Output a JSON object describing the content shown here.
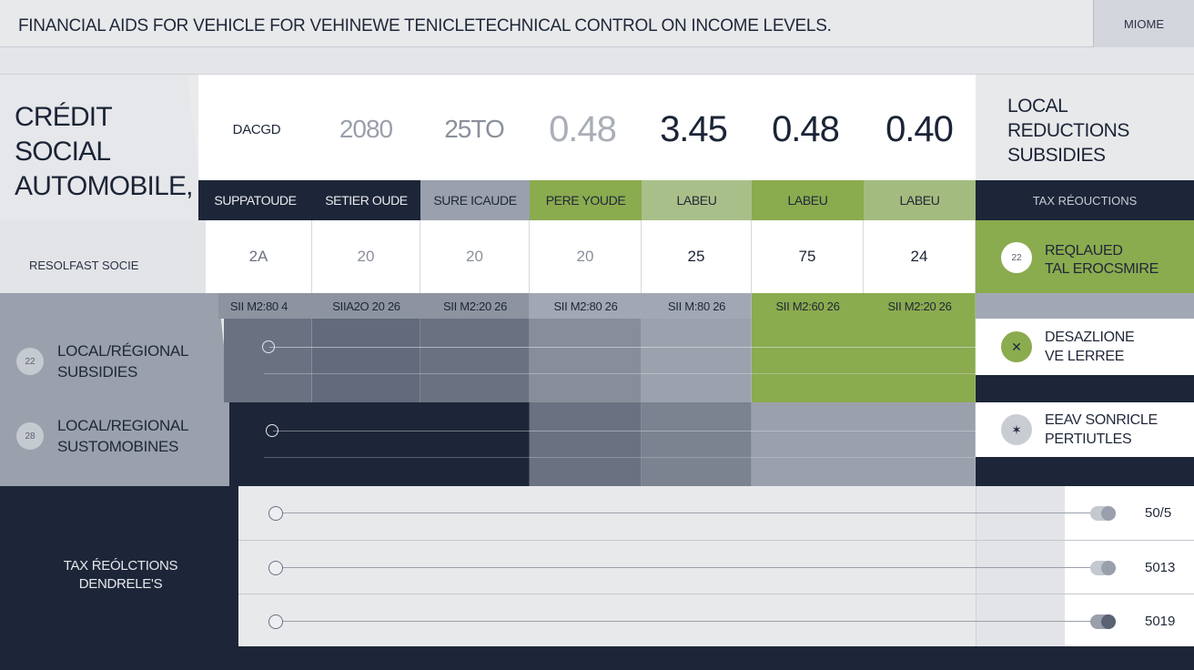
{
  "header": {
    "title": "FINANCIAL AIDS FOR VEHICLE FOR VEHINEWE TENICLETECHNICAL CONTROL ON INCOME LEVELS.",
    "more_label": "MIOME"
  },
  "left_panel": {
    "title_lines": [
      "CRÉDIT",
      "SOCIAL",
      "AUTOMOBILE,"
    ],
    "row_label": "RESOLFAST SOCIE",
    "items": [
      {
        "badge": "22",
        "line1": "LOCAL/RÉGIONAL",
        "line2": "SUBSIDIES"
      },
      {
        "badge": "28",
        "line1": "LOCAL/REGIONAL",
        "line2": "SUSTOMOBINES"
      }
    ],
    "bottom_label_lines": [
      "TAX ŔEÓLCTIONS",
      "DENDRELE'S"
    ]
  },
  "table": {
    "row_label": "DACGD",
    "numbers": [
      "2080",
      "25TO",
      "0.48",
      "3.45",
      "0.48",
      "0.40"
    ],
    "column_headers": [
      "SUPPATOUDE",
      "SETIER OUDE",
      "SURE ICAUDE",
      "PERE YOUDE",
      "LABEU",
      "LABEU",
      "LABEU"
    ],
    "values": [
      "2A",
      "20",
      "20",
      "20",
      "25",
      "75",
      "24"
    ],
    "dates": [
      "SII M2:80 4",
      "SIIA2O 20 26",
      "SII M2:20 26",
      "SII M2:80 26",
      "SII M:80 26",
      "SII M2:60 26",
      "SII M2:20 26"
    ]
  },
  "right_panel": {
    "title_lines": [
      "LOCAL",
      "REDUCTIONS",
      "SUBSIDIES"
    ],
    "tax_label": "TAX RÉOUCTIONS",
    "green_card": {
      "badge": "22",
      "line1": "REQLAUED",
      "line2": "TAL EROCSMIRE"
    },
    "cards": [
      {
        "badge": "✕",
        "line1": "DESAZLIONE",
        "line2": "VE LERREE"
      },
      {
        "badge": "✶",
        "line1": "EEAV SONRICLE",
        "line2": "PERTIUTLES"
      }
    ]
  },
  "bottom_rows": [
    {
      "value": "50/5",
      "toggle": 0.5
    },
    {
      "value": "5013",
      "toggle": 0.5
    },
    {
      "value": "5019",
      "toggle": 0.3
    }
  ],
  "colors": {
    "navy": "#1d2638",
    "green": "#8bab4f",
    "slate": "#9aa1ad"
  }
}
